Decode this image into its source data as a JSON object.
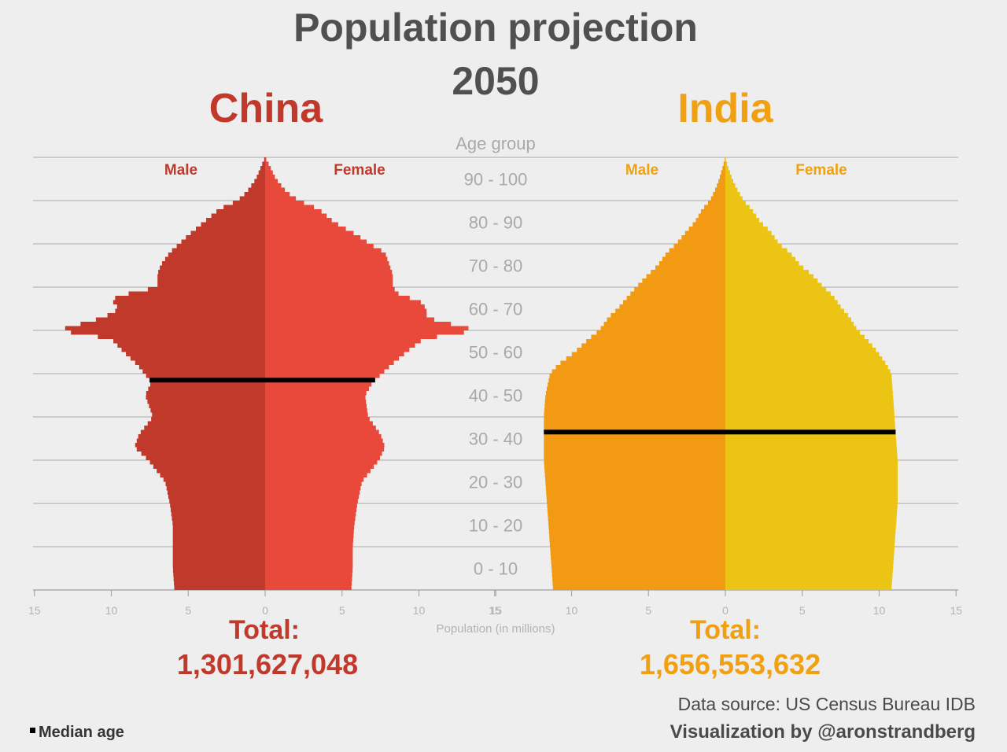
{
  "title_line1": "Population projection",
  "title_line2": "2050",
  "age_axis_title": "Age group",
  "x_axis_title": "Population (in millions)",
  "source": "Data source: US Census Bureau IDB",
  "credit": "Visualization by @aronstrandberg",
  "legend_label": "Median age",
  "colors": {
    "china_male": "#c0392b",
    "china_female": "#e8493b",
    "india_male": "#f29b12",
    "india_female": "#ecc414",
    "china_text": "#c0392b",
    "china_total_text": "#c0392b",
    "india_text": "#f0a010",
    "india_total_text": "#f0a010",
    "median_line": "#000000",
    "gridline": "#b9b9b9"
  },
  "chart_data": [
    {
      "type": "population-pyramid",
      "country": "China",
      "male_label": "Male",
      "female_label": "Female",
      "total_label": "Total:",
      "total_value": "1,301,627,048",
      "median_age": 48.5,
      "age_groups": [
        "0 - 10",
        "10 - 20",
        "20 - 30",
        "30 - 40",
        "40 - 50",
        "50 - 60",
        "60 - 70",
        "70 - 80",
        "80 - 90",
        "90 - 100"
      ],
      "xlim": [
        -15,
        15
      ],
      "xticks": [
        15,
        10,
        5,
        0,
        5,
        10,
        15
      ],
      "profile": {
        "age": [
          0,
          5,
          10,
          15,
          20,
          25,
          30,
          33,
          36,
          40,
          45,
          48,
          52,
          55,
          58,
          60,
          62,
          63,
          65,
          67,
          68,
          70,
          73,
          75,
          78,
          80,
          82,
          85,
          88,
          90,
          92,
          95,
          98,
          100
        ],
        "male": [
          5.9,
          6.0,
          6.0,
          6.0,
          6.2,
          6.5,
          7.6,
          8.5,
          8.2,
          7.3,
          7.8,
          7.4,
          8.3,
          9.2,
          10.0,
          13.5,
          11.5,
          10.5,
          9.5,
          10.0,
          9.5,
          7.0,
          7.0,
          6.8,
          6.2,
          5.6,
          5.0,
          4.0,
          3.0,
          1.8,
          1.2,
          0.6,
          0.25,
          0.0
        ],
        "female": [
          5.6,
          5.7,
          5.7,
          5.8,
          6.0,
          6.3,
          7.4,
          7.8,
          7.5,
          6.7,
          6.5,
          7.0,
          8.2,
          9.2,
          10.3,
          13.8,
          11.5,
          10.5,
          10.5,
          10.0,
          8.8,
          8.3,
          8.3,
          8.1,
          7.8,
          6.8,
          6.0,
          4.5,
          3.5,
          2.2,
          1.4,
          0.7,
          0.3,
          0.0
        ]
      }
    },
    {
      "type": "population-pyramid",
      "country": "India",
      "male_label": "Male",
      "female_label": "Female",
      "total_label": "Total:",
      "total_value": "1,656,553,632",
      "median_age": 36.5,
      "age_groups": [
        "0 - 10",
        "10 - 20",
        "20 - 30",
        "30 - 40",
        "40 - 50",
        "50 - 60",
        "60 - 70",
        "70 - 80",
        "80 - 90",
        "90 - 100"
      ],
      "xlim": [
        -15,
        15
      ],
      "xticks": [
        15,
        10,
        5,
        0,
        5,
        10,
        15
      ],
      "profile": {
        "age": [
          0,
          5,
          10,
          15,
          20,
          25,
          30,
          35,
          40,
          45,
          50,
          52,
          55,
          58,
          60,
          63,
          65,
          68,
          70,
          73,
          75,
          78,
          80,
          83,
          85,
          88,
          90,
          93,
          95,
          98,
          100
        ],
        "male": [
          11.2,
          11.3,
          11.4,
          11.5,
          11.6,
          11.7,
          11.8,
          11.8,
          11.8,
          11.7,
          11.4,
          10.9,
          9.8,
          8.9,
          8.2,
          7.6,
          7.0,
          6.3,
          5.8,
          5.0,
          4.4,
          3.8,
          3.2,
          2.5,
          2.0,
          1.5,
          1.0,
          0.6,
          0.4,
          0.15,
          0.0
        ],
        "female": [
          10.8,
          10.9,
          11.0,
          11.1,
          11.2,
          11.2,
          11.2,
          11.1,
          11.0,
          10.9,
          10.8,
          10.5,
          9.9,
          9.2,
          8.6,
          8.1,
          7.6,
          7.0,
          6.4,
          5.6,
          4.9,
          4.2,
          3.5,
          2.9,
          2.3,
          1.7,
          1.2,
          0.7,
          0.45,
          0.15,
          0.0
        ]
      }
    }
  ]
}
